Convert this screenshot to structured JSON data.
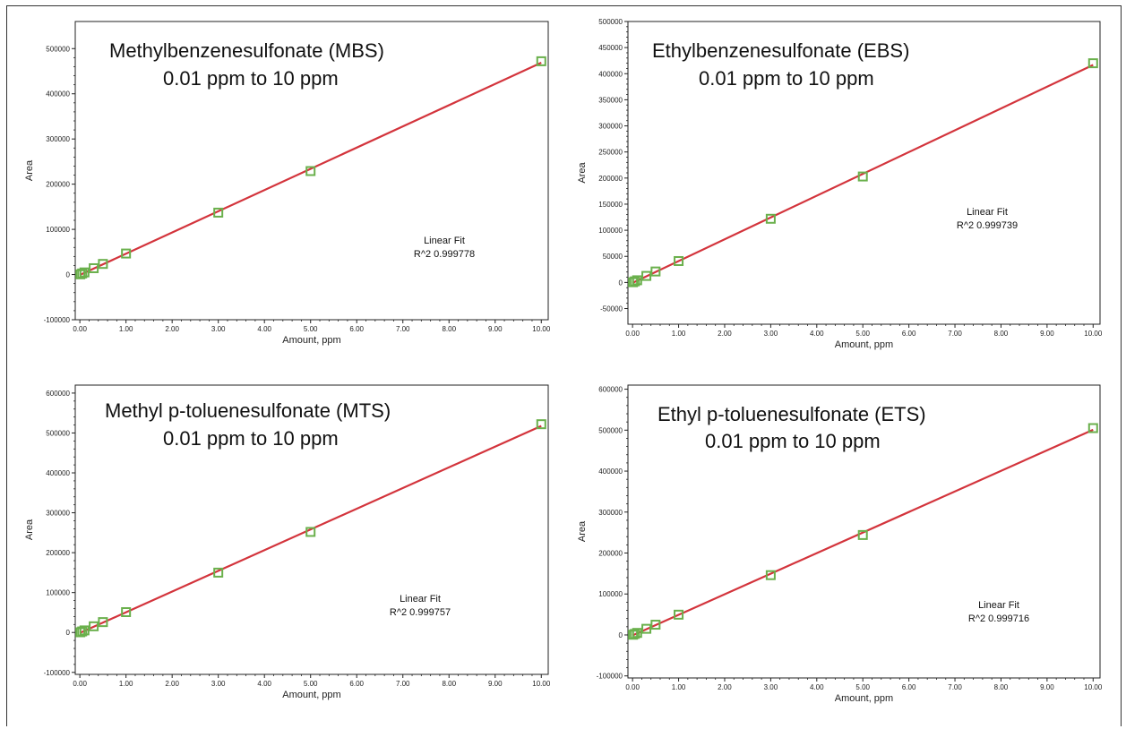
{
  "chart_data": [
    {
      "type": "scatter",
      "title": "Methylbenzenesulfonate (MBS)",
      "subtitle": "0.01 ppm to 10 ppm",
      "xlabel": "Amount,  ppm",
      "ylabel": "Area",
      "xlim": [
        -0.1,
        10.15
      ],
      "ylim": [
        -100000,
        560000
      ],
      "xticks": [
        0,
        1,
        2,
        3,
        4,
        5,
        6,
        7,
        8,
        9,
        10
      ],
      "xtick_labels": [
        "0.00",
        "1.00",
        "2.00",
        "3.00",
        "4.00",
        "5.00",
        "6.00",
        "7.00",
        "8.00",
        "9.00",
        "10.00"
      ],
      "yticks": [
        -100000,
        0,
        100000,
        200000,
        300000,
        400000,
        500000
      ],
      "ytick_labels": [
        "-100000",
        "0",
        "100000",
        "200000",
        "300000",
        "400000",
        "500000"
      ],
      "series": [
        {
          "x": [
            0.01,
            0.05,
            0.1,
            0.3,
            0.5,
            1.0,
            3.0,
            5.0,
            10.0
          ],
          "y": [
            470,
            2350,
            4700,
            14000,
            23500,
            46500,
            137000,
            229000,
            472000
          ]
        }
      ],
      "fit": {
        "label": "Linear Fit",
        "r2": "R^2  0.999778"
      },
      "grid": false
    },
    {
      "type": "scatter",
      "title": "Ethylbenzenesulfonate (EBS)",
      "subtitle": "0.01 ppm to 10 ppm",
      "xlabel": "Amount,  ppm",
      "ylabel": "Area",
      "xlim": [
        -0.1,
        10.15
      ],
      "ylim": [
        -80000,
        500000
      ],
      "xticks": [
        0,
        1,
        2,
        3,
        4,
        5,
        6,
        7,
        8,
        9,
        10
      ],
      "xtick_labels": [
        "0.00",
        "1.00",
        "2.00",
        "3.00",
        "4.00",
        "5.00",
        "6.00",
        "7.00",
        "8.00",
        "9.00",
        "10.00"
      ],
      "yticks": [
        -50000,
        0,
        50000,
        100000,
        150000,
        200000,
        250000,
        300000,
        350000,
        400000,
        450000,
        500000
      ],
      "ytick_labels": [
        "-50000",
        "0",
        "50000",
        "100000",
        "150000",
        "200000",
        "250000",
        "300000",
        "350000",
        "400000",
        "450000",
        "500000"
      ],
      "series": [
        {
          "x": [
            0.01,
            0.05,
            0.1,
            0.3,
            0.5,
            1.0,
            3.0,
            5.0,
            10.0
          ],
          "y": [
            420,
            2100,
            4200,
            12500,
            21000,
            41000,
            122000,
            203000,
            420000
          ]
        }
      ],
      "fit": {
        "label": "Linear Fit",
        "r2": "R^2  0.999739"
      },
      "grid": false
    },
    {
      "type": "scatter",
      "title": "Methyl p-toluenesulfonate (MTS)",
      "subtitle": "0.01 ppm to 10 ppm",
      "xlabel": "Amount,  ppm",
      "ylabel": "Area",
      "xlim": [
        -0.1,
        10.15
      ],
      "ylim": [
        -105000,
        620000
      ],
      "xticks": [
        0,
        1,
        2,
        3,
        4,
        5,
        6,
        7,
        8,
        9,
        10
      ],
      "xtick_labels": [
        "0.00",
        "1.00",
        "2.00",
        "3.00",
        "4.00",
        "5.00",
        "6.00",
        "7.00",
        "8.00",
        "9.00",
        "10.00"
      ],
      "yticks": [
        -100000,
        0,
        100000,
        200000,
        300000,
        400000,
        500000,
        600000
      ],
      "ytick_labels": [
        "-100000",
        "0",
        "100000",
        "200000",
        "300000",
        "400000",
        "500000",
        "600000"
      ],
      "series": [
        {
          "x": [
            0.01,
            0.05,
            0.1,
            0.3,
            0.5,
            1.0,
            3.0,
            5.0,
            10.0
          ],
          "y": [
            520,
            2600,
            5200,
            15500,
            26000,
            51000,
            150000,
            252000,
            522000
          ]
        }
      ],
      "fit": {
        "label": "Linear Fit",
        "r2": "R^2  0.999757"
      },
      "grid": false
    },
    {
      "type": "scatter",
      "title": "Ethyl p-toluenesulfonate (ETS)",
      "subtitle": "0.01 ppm to 10 ppm",
      "xlabel": "Amount,  ppm",
      "ylabel": "Area",
      "xlim": [
        -0.1,
        10.15
      ],
      "ylim": [
        -105000,
        610000
      ],
      "xticks": [
        0,
        1,
        2,
        3,
        4,
        5,
        6,
        7,
        8,
        9,
        10
      ],
      "xtick_labels": [
        "0.00",
        "1.00",
        "2.00",
        "3.00",
        "4.00",
        "5.00",
        "6.00",
        "7.00",
        "8.00",
        "9.00",
        "10.00"
      ],
      "yticks": [
        -100000,
        0,
        100000,
        200000,
        300000,
        400000,
        500000,
        600000
      ],
      "ytick_labels": [
        "-100000",
        "0",
        "100000",
        "200000",
        "300000",
        "400000",
        "500000",
        "600000"
      ],
      "series": [
        {
          "x": [
            0.01,
            0.05,
            0.1,
            0.3,
            0.5,
            1.0,
            3.0,
            5.0,
            10.0
          ],
          "y": [
            505,
            2500,
            5000,
            15000,
            25000,
            49500,
            146000,
            244000,
            505000
          ]
        }
      ],
      "fit": {
        "label": "Linear Fit",
        "r2": "R^2  0.999716"
      },
      "grid": false
    }
  ],
  "colors": {
    "fit_line": "#d3343c",
    "marker": "#6ab04c",
    "axis": "#222222"
  }
}
